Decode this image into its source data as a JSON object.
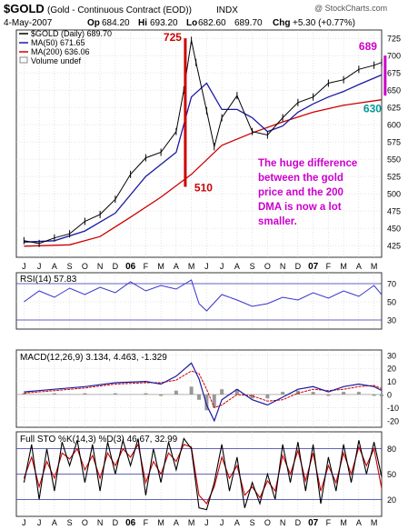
{
  "header": {
    "symbol": "$GOLD",
    "name": "(Gold - Continuous Contract (EOD))",
    "exchange": "INDX",
    "watermark": "@ StockCharts.com",
    "date": "4-May-2007",
    "op_label": "Op",
    "op": "684.20",
    "hi_label": "Hi",
    "hi": "693.20",
    "lo_label": "Lo",
    "lo": "682.60",
    "close": "689.70",
    "chg_label": "Chg",
    "chg": "+5.30 (+0.77%)"
  },
  "x_axis": {
    "labels": [
      "J",
      "J",
      "A",
      "S",
      "O",
      "N",
      "D",
      "06",
      "F",
      "M",
      "A",
      "M",
      "J",
      "J",
      "A",
      "S",
      "O",
      "N",
      "D",
      "07",
      "F",
      "M",
      "A",
      "M"
    ],
    "bold": [
      "06",
      "07"
    ]
  },
  "colors": {
    "price": "#000000",
    "ma50": "#1a1aa0",
    "ma200": "#cc0000",
    "magenta": "#cc00cc",
    "annotation": "#cc0000",
    "rsi": "#3333cc",
    "histogram": "#999999",
    "sto_k": "#000000",
    "sto_d": "#cc0000",
    "panel_border": "#333333",
    "grid": "#c8c8c8"
  },
  "chart_data": [
    {
      "type": "line",
      "title": "$GOLD (Daily) 689.70",
      "legend": [
        {
          "label": "$GOLD (Daily) 689.70",
          "color": "#000000"
        },
        {
          "label": "MA(50) 671.65",
          "color": "#1a1aa0"
        },
        {
          "label": "MA(200) 636.06",
          "color": "#cc0000"
        },
        {
          "label": "Volume undef",
          "color": "#888888"
        }
      ],
      "yticks": [
        425,
        450,
        475,
        500,
        525,
        550,
        575,
        600,
        625,
        650,
        675,
        700,
        725
      ],
      "ylim": [
        408,
        737
      ],
      "price_points": [
        [
          0,
          432
        ],
        [
          1,
          428
        ],
        [
          2,
          436
        ],
        [
          3,
          442
        ],
        [
          4,
          460
        ],
        [
          5,
          470
        ],
        [
          6,
          492
        ],
        [
          7,
          528
        ],
        [
          8,
          552
        ],
        [
          9,
          560
        ],
        [
          10,
          590
        ],
        [
          10.5,
          650
        ],
        [
          11,
          722
        ],
        [
          11.3,
          690
        ],
        [
          12,
          620
        ],
        [
          12.5,
          568
        ],
        [
          13,
          610
        ],
        [
          14,
          642
        ],
        [
          15,
          590
        ],
        [
          16,
          585
        ],
        [
          17,
          610
        ],
        [
          18,
          632
        ],
        [
          19,
          640
        ],
        [
          20,
          660
        ],
        [
          21,
          665
        ],
        [
          22,
          680
        ],
        [
          23,
          686
        ],
        [
          23.5,
          690
        ]
      ],
      "ma50_points": [
        [
          0,
          430
        ],
        [
          2,
          432
        ],
        [
          4,
          446
        ],
        [
          6,
          472
        ],
        [
          8,
          525
        ],
        [
          10,
          560
        ],
        [
          11,
          640
        ],
        [
          12,
          660
        ],
        [
          13,
          622
        ],
        [
          14,
          622
        ],
        [
          15,
          610
        ],
        [
          16,
          590
        ],
        [
          17,
          598
        ],
        [
          18,
          618
        ],
        [
          19,
          630
        ],
        [
          20,
          640
        ],
        [
          21,
          648
        ],
        [
          22,
          658
        ],
        [
          23.5,
          672
        ]
      ],
      "ma200_points": [
        [
          0,
          424
        ],
        [
          3,
          426
        ],
        [
          5,
          438
        ],
        [
          7,
          466
        ],
        [
          9,
          495
        ],
        [
          11,
          528
        ],
        [
          13,
          570
        ],
        [
          15,
          588
        ],
        [
          17,
          604
        ],
        [
          19,
          618
        ],
        [
          21,
          628
        ],
        [
          23.5,
          636
        ]
      ],
      "annotations": [
        {
          "text": "725",
          "x": 10.6,
          "y": 725
        },
        {
          "text": "510",
          "x": 11.3,
          "y": 510
        },
        {
          "text": "689",
          "x": 22.6,
          "y": 708
        },
        {
          "text": "630",
          "x": 22.9,
          "y": 618
        },
        {
          "text": "The huge difference between the gold price and the 200 DMA is now a lot smaller.",
          "lines": [
            "The huge difference",
            "between the gold",
            "price and the 200",
            "DMA is now a lot",
            "smaller."
          ]
        }
      ]
    },
    {
      "type": "line",
      "title": "RSI(14) 57.83",
      "yticks": [
        30,
        50,
        70
      ],
      "ylim": [
        20,
        82
      ],
      "reference_lines": [
        30,
        70
      ],
      "points": [
        [
          0,
          50
        ],
        [
          1,
          62
        ],
        [
          2,
          55
        ],
        [
          3,
          65
        ],
        [
          4,
          58
        ],
        [
          5,
          66
        ],
        [
          6,
          60
        ],
        [
          7,
          72
        ],
        [
          8,
          62
        ],
        [
          9,
          68
        ],
        [
          10,
          64
        ],
        [
          11,
          74
        ],
        [
          11.5,
          48
        ],
        [
          12,
          40
        ],
        [
          13,
          58
        ],
        [
          14,
          52
        ],
        [
          15,
          45
        ],
        [
          16,
          48
        ],
        [
          17,
          55
        ],
        [
          18,
          52
        ],
        [
          19,
          60
        ],
        [
          20,
          54
        ],
        [
          21,
          62
        ],
        [
          22,
          56
        ],
        [
          23,
          68
        ],
        [
          23.5,
          57.83
        ]
      ]
    },
    {
      "type": "line",
      "title": "MACD(12,26,9) 3.134, 4.463, -1.329",
      "yticks": [
        -20,
        -10,
        0,
        10,
        20,
        30
      ],
      "ylim": [
        -25,
        34
      ],
      "macd_points": [
        [
          0,
          2
        ],
        [
          2,
          4
        ],
        [
          4,
          6
        ],
        [
          6,
          9
        ],
        [
          8,
          10
        ],
        [
          9,
          8
        ],
        [
          10,
          14
        ],
        [
          11,
          24
        ],
        [
          11.5,
          12
        ],
        [
          12,
          -8
        ],
        [
          12.5,
          -20
        ],
        [
          13,
          -4
        ],
        [
          14,
          4
        ],
        [
          15,
          -4
        ],
        [
          16,
          -8
        ],
        [
          17,
          -2
        ],
        [
          18,
          4
        ],
        [
          19,
          6
        ],
        [
          20,
          2
        ],
        [
          21,
          6
        ],
        [
          22,
          8
        ],
        [
          23,
          6
        ],
        [
          23.5,
          3.134
        ]
      ],
      "signal_points": [
        [
          0,
          1
        ],
        [
          2,
          3
        ],
        [
          4,
          5
        ],
        [
          6,
          8
        ],
        [
          8,
          9
        ],
        [
          9,
          9
        ],
        [
          10,
          11
        ],
        [
          11,
          18
        ],
        [
          11.5,
          16
        ],
        [
          12,
          4
        ],
        [
          12.5,
          -10
        ],
        [
          13,
          -8
        ],
        [
          14,
          0
        ],
        [
          15,
          -1
        ],
        [
          16,
          -5
        ],
        [
          17,
          -4
        ],
        [
          18,
          1
        ],
        [
          19,
          4
        ],
        [
          20,
          3
        ],
        [
          21,
          4
        ],
        [
          22,
          6
        ],
        [
          23,
          7
        ],
        [
          23.5,
          4.463
        ]
      ]
    },
    {
      "type": "line",
      "title": "Full STO %K(14,3) %D(3) 46.67, 32.99",
      "yticks": [
        20,
        50,
        80
      ],
      "ylim": [
        0,
        100
      ],
      "reference_lines": [
        20,
        50,
        80
      ],
      "k_points": [
        [
          0,
          40
        ],
        [
          0.5,
          85
        ],
        [
          1,
          20
        ],
        [
          1.5,
          80
        ],
        [
          2,
          30
        ],
        [
          2.5,
          88
        ],
        [
          3,
          60
        ],
        [
          3.5,
          90
        ],
        [
          4,
          40
        ],
        [
          4.5,
          85
        ],
        [
          5,
          30
        ],
        [
          5.5,
          88
        ],
        [
          6,
          50
        ],
        [
          6.5,
          90
        ],
        [
          7,
          60
        ],
        [
          7.5,
          92
        ],
        [
          8,
          25
        ],
        [
          8.5,
          80
        ],
        [
          9,
          40
        ],
        [
          9.5,
          88
        ],
        [
          10,
          55
        ],
        [
          10.5,
          92
        ],
        [
          11,
          80
        ],
        [
          11.5,
          10
        ],
        [
          12,
          8
        ],
        [
          12.5,
          40
        ],
        [
          13,
          85
        ],
        [
          13.5,
          30
        ],
        [
          14,
          70
        ],
        [
          14.5,
          10
        ],
        [
          15,
          40
        ],
        [
          15.5,
          15
        ],
        [
          16,
          50
        ],
        [
          16.5,
          20
        ],
        [
          17,
          85
        ],
        [
          17.5,
          40
        ],
        [
          18,
          88
        ],
        [
          18.5,
          30
        ],
        [
          19,
          85
        ],
        [
          19.5,
          15
        ],
        [
          20,
          70
        ],
        [
          20.5,
          30
        ],
        [
          21,
          85
        ],
        [
          21.5,
          40
        ],
        [
          22,
          90
        ],
        [
          22.5,
          50
        ],
        [
          23,
          88
        ],
        [
          23.5,
          46.67
        ]
      ],
      "d_points": [
        [
          0,
          45
        ],
        [
          0.5,
          70
        ],
        [
          1,
          35
        ],
        [
          1.5,
          65
        ],
        [
          2,
          45
        ],
        [
          2.5,
          75
        ],
        [
          3,
          68
        ],
        [
          3.5,
          80
        ],
        [
          4,
          55
        ],
        [
          4.5,
          72
        ],
        [
          5,
          45
        ],
        [
          5.5,
          75
        ],
        [
          6,
          60
        ],
        [
          6.5,
          80
        ],
        [
          7,
          70
        ],
        [
          7.5,
          85
        ],
        [
          8,
          40
        ],
        [
          8.5,
          65
        ],
        [
          9,
          50
        ],
        [
          9.5,
          75
        ],
        [
          10,
          65
        ],
        [
          10.5,
          85
        ],
        [
          11,
          82
        ],
        [
          11.5,
          25
        ],
        [
          12,
          15
        ],
        [
          12.5,
          35
        ],
        [
          13,
          70
        ],
        [
          13.5,
          45
        ],
        [
          14,
          60
        ],
        [
          14.5,
          25
        ],
        [
          15,
          35
        ],
        [
          15.5,
          22
        ],
        [
          16,
          42
        ],
        [
          16.5,
          30
        ],
        [
          17,
          72
        ],
        [
          17.5,
          50
        ],
        [
          18,
          78
        ],
        [
          18.5,
          42
        ],
        [
          19,
          75
        ],
        [
          19.5,
          30
        ],
        [
          20,
          60
        ],
        [
          20.5,
          40
        ],
        [
          21,
          75
        ],
        [
          21.5,
          50
        ],
        [
          22,
          82
        ],
        [
          22.5,
          60
        ],
        [
          23,
          80
        ],
        [
          23.5,
          32.99
        ]
      ]
    }
  ]
}
